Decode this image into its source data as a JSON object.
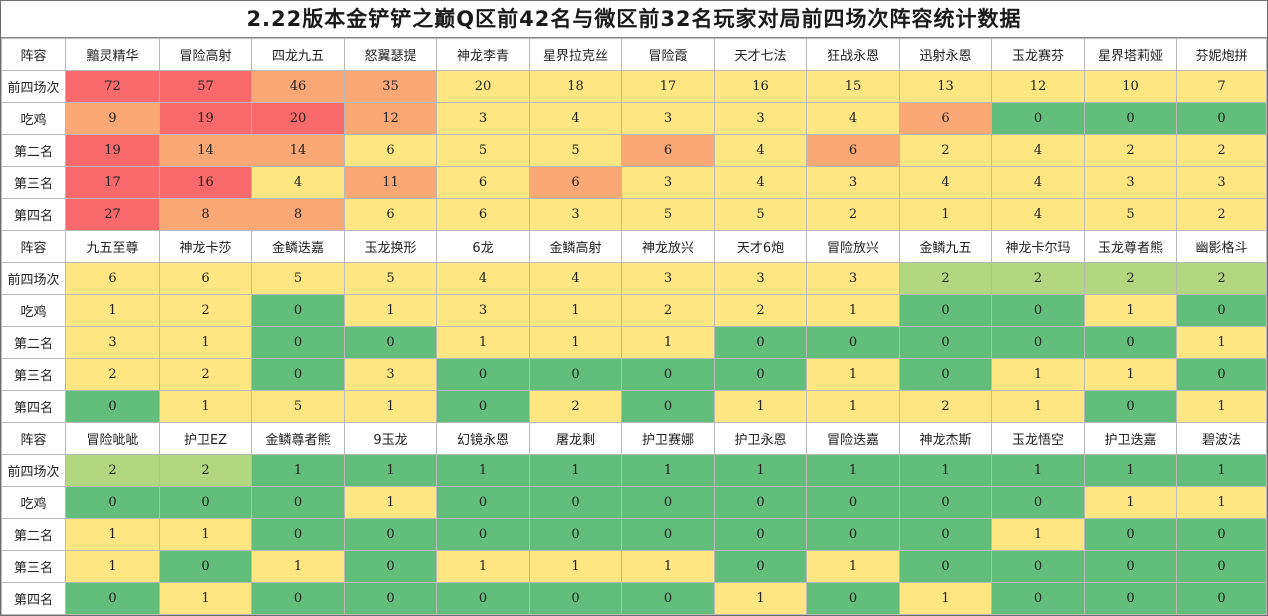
{
  "title": "2.22版本金铲铲之巅Q区前42名与微区前32名玩家对局前四场次阵容统计数据",
  "row_labels": [
    "阵容",
    "前四场次",
    "吃鸡",
    "第二名",
    "第三名",
    "第四名"
  ],
  "colors": {
    "red": "#f8696b",
    "orange": "#fba877",
    "yellow": "#fee783",
    "lightgreen": "#b3d780",
    "green": "#63be7b"
  },
  "chart_data": {
    "type": "table",
    "metrics": [
      "前四场次",
      "吃鸡",
      "第二名",
      "第三名",
      "第四名"
    ],
    "blocks": [
      {
        "compositions": [
          "黯灵精华",
          "冒险高射",
          "四龙九五",
          "怒翼瑟提",
          "神龙李青",
          "星界拉克丝",
          "冒险霞",
          "天才七法",
          "狂战永恩",
          "迅射永恩",
          "玉龙赛芬",
          "星界塔莉娅",
          "芬妮炮拼"
        ],
        "values": [
          [
            72,
            57,
            46,
            35,
            20,
            18,
            17,
            16,
            15,
            13,
            12,
            10,
            7
          ],
          [
            9,
            19,
            20,
            12,
            3,
            4,
            3,
            3,
            4,
            6,
            0,
            0,
            0
          ],
          [
            19,
            14,
            14,
            6,
            5,
            5,
            6,
            4,
            6,
            2,
            4,
            2,
            2
          ],
          [
            17,
            16,
            4,
            11,
            6,
            6,
            3,
            4,
            3,
            4,
            4,
            3,
            3
          ],
          [
            27,
            8,
            8,
            6,
            6,
            3,
            5,
            5,
            2,
            1,
            4,
            5,
            2
          ]
        ],
        "colors": [
          [
            "red",
            "red",
            "orange",
            "orange",
            "yellow",
            "yellow",
            "yellow",
            "yellow",
            "yellow",
            "yellow",
            "yellow",
            "yellow",
            "yellow"
          ],
          [
            "orange",
            "red",
            "red",
            "orange",
            "yellow",
            "yellow",
            "yellow",
            "yellow",
            "yellow",
            "orange",
            "green",
            "green",
            "green"
          ],
          [
            "red",
            "orange",
            "orange",
            "yellow",
            "yellow",
            "yellow",
            "orange",
            "yellow",
            "orange",
            "yellow",
            "yellow",
            "yellow",
            "yellow"
          ],
          [
            "red",
            "red",
            "yellow",
            "orange",
            "yellow",
            "orange",
            "yellow",
            "yellow",
            "yellow",
            "yellow",
            "yellow",
            "yellow",
            "yellow"
          ],
          [
            "red",
            "orange",
            "orange",
            "yellow",
            "yellow",
            "yellow",
            "yellow",
            "yellow",
            "yellow",
            "yellow",
            "yellow",
            "yellow",
            "yellow"
          ]
        ]
      },
      {
        "compositions": [
          "九五至尊",
          "神龙卡莎",
          "金鳞迭嘉",
          "玉龙换形",
          "6龙",
          "金鳞高射",
          "神龙放兴",
          "天才6炮",
          "冒险放兴",
          "金鳞九五",
          "神龙卡尔玛",
          "玉龙尊者熊",
          "幽影格斗"
        ],
        "values": [
          [
            6,
            6,
            5,
            5,
            4,
            4,
            3,
            3,
            3,
            2,
            2,
            2,
            2
          ],
          [
            1,
            2,
            0,
            1,
            3,
            1,
            2,
            2,
            1,
            0,
            0,
            1,
            0
          ],
          [
            3,
            1,
            0,
            0,
            1,
            1,
            1,
            0,
            0,
            0,
            0,
            0,
            1
          ],
          [
            2,
            2,
            0,
            3,
            0,
            0,
            0,
            0,
            1,
            0,
            1,
            1,
            0
          ],
          [
            0,
            1,
            5,
            1,
            0,
            2,
            0,
            1,
            1,
            2,
            1,
            0,
            1
          ]
        ],
        "colors": [
          [
            "yellow",
            "yellow",
            "yellow",
            "yellow",
            "yellow",
            "yellow",
            "yellow",
            "yellow",
            "yellow",
            "lightgreen",
            "lightgreen",
            "lightgreen",
            "lightgreen"
          ],
          [
            "yellow",
            "yellow",
            "green",
            "yellow",
            "yellow",
            "yellow",
            "yellow",
            "yellow",
            "yellow",
            "green",
            "green",
            "yellow",
            "green"
          ],
          [
            "yellow",
            "yellow",
            "green",
            "green",
            "yellow",
            "yellow",
            "yellow",
            "green",
            "green",
            "green",
            "green",
            "green",
            "yellow"
          ],
          [
            "yellow",
            "yellow",
            "green",
            "yellow",
            "green",
            "green",
            "green",
            "green",
            "yellow",
            "green",
            "yellow",
            "yellow",
            "green"
          ],
          [
            "green",
            "yellow",
            "yellow",
            "yellow",
            "green",
            "yellow",
            "green",
            "yellow",
            "yellow",
            "yellow",
            "yellow",
            "green",
            "yellow"
          ]
        ]
      },
      {
        "compositions": [
          "冒险呲呲",
          "护卫EZ",
          "金鳞尊者熊",
          "9玉龙",
          "幻镜永恩",
          "屠龙剩",
          "护卫赛娜",
          "护卫永恩",
          "冒险迭嘉",
          "神龙杰斯",
          "玉龙悟空",
          "护卫迭嘉",
          "碧波法"
        ],
        "values": [
          [
            2,
            2,
            1,
            1,
            1,
            1,
            1,
            1,
            1,
            1,
            1,
            1,
            1
          ],
          [
            0,
            0,
            0,
            1,
            0,
            0,
            0,
            0,
            0,
            0,
            0,
            1,
            1
          ],
          [
            1,
            1,
            0,
            0,
            0,
            0,
            0,
            0,
            0,
            0,
            1,
            0,
            0
          ],
          [
            1,
            0,
            1,
            0,
            1,
            1,
            1,
            0,
            1,
            0,
            0,
            0,
            0
          ],
          [
            0,
            1,
            0,
            0,
            0,
            0,
            0,
            1,
            0,
            1,
            0,
            0,
            0
          ]
        ],
        "colors": [
          [
            "lightgreen",
            "lightgreen",
            "green",
            "green",
            "green",
            "green",
            "green",
            "green",
            "green",
            "green",
            "green",
            "green",
            "green"
          ],
          [
            "green",
            "green",
            "green",
            "yellow",
            "green",
            "green",
            "green",
            "green",
            "green",
            "green",
            "green",
            "yellow",
            "yellow"
          ],
          [
            "yellow",
            "yellow",
            "green",
            "green",
            "green",
            "green",
            "green",
            "green",
            "green",
            "green",
            "yellow",
            "green",
            "green"
          ],
          [
            "yellow",
            "green",
            "yellow",
            "green",
            "yellow",
            "yellow",
            "yellow",
            "green",
            "yellow",
            "green",
            "green",
            "green",
            "green"
          ],
          [
            "green",
            "yellow",
            "green",
            "green",
            "green",
            "green",
            "green",
            "yellow",
            "green",
            "yellow",
            "green",
            "green",
            "green"
          ]
        ]
      }
    ]
  }
}
